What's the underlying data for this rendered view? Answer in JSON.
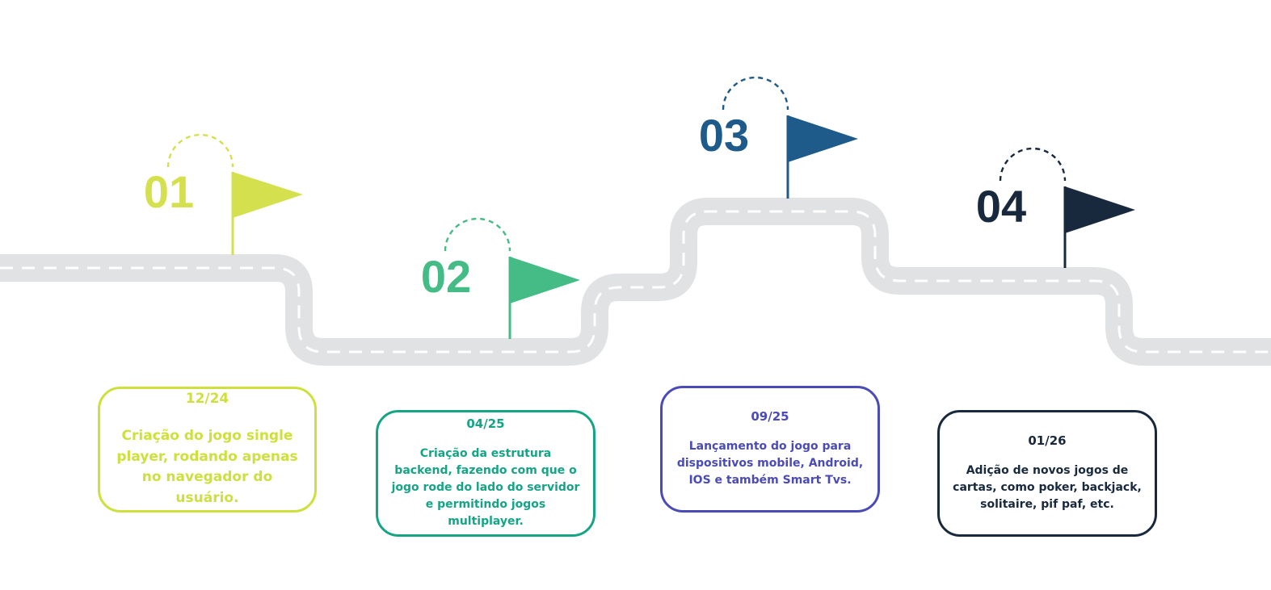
{
  "milestones": [
    {
      "number": "01",
      "date": "12/24",
      "description": "Criação do jogo single player, rodando apenas no navegador do usuário.",
      "flag_color": "#d5e04e",
      "text_color": "#cde03c"
    },
    {
      "number": "02",
      "date": "04/25",
      "description": "Criação da estrutura backend, fazendo com que o jogo rode do lado do servidor e permitindo jogos multiplayer.",
      "flag_color": "#45bc85",
      "text_color": "#15a585"
    },
    {
      "number": "03",
      "date": "09/25",
      "description": "Lançamento do jogo para dispositivos mobile, Android, IOS e também Smart Tvs.",
      "flag_color": "#1e5a8a",
      "text_color": "#4b4bb8"
    },
    {
      "number": "04",
      "date": "01/26",
      "description": "Adição de novos jogos de cartas, como poker, backjack, solitaire, pif paf, etc.",
      "flag_color": "#18293e",
      "text_color": "#18293e"
    }
  ],
  "colors": {
    "road": "#e1e2e3",
    "road_dash": "#ffffff",
    "background": "#ffffff"
  }
}
